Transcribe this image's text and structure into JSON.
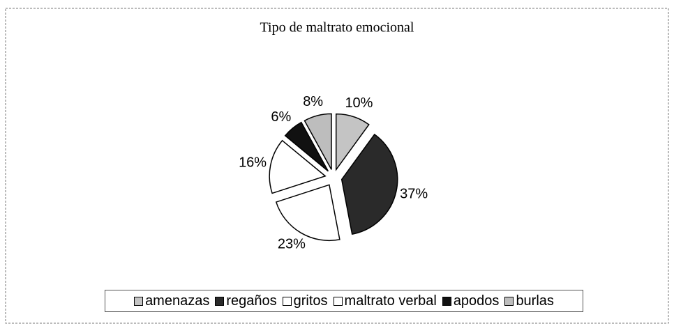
{
  "chart_data": {
    "type": "pie",
    "title": "Tipo de maltrato emocional",
    "categories": [
      "amenazas",
      "regaños",
      "gritos",
      "maltrato verbal",
      "apodos",
      "burlas"
    ],
    "values": [
      10,
      37,
      23,
      16,
      6,
      8
    ],
    "value_labels": [
      "10%",
      "37%",
      "23%",
      "16%",
      "6%",
      "8%"
    ],
    "colors": [
      "#c4c4c4",
      "#2a2a2a",
      "#ffffff",
      "#ffffff",
      "#111111",
      "#bdbdbd"
    ],
    "legend": "bottom"
  }
}
